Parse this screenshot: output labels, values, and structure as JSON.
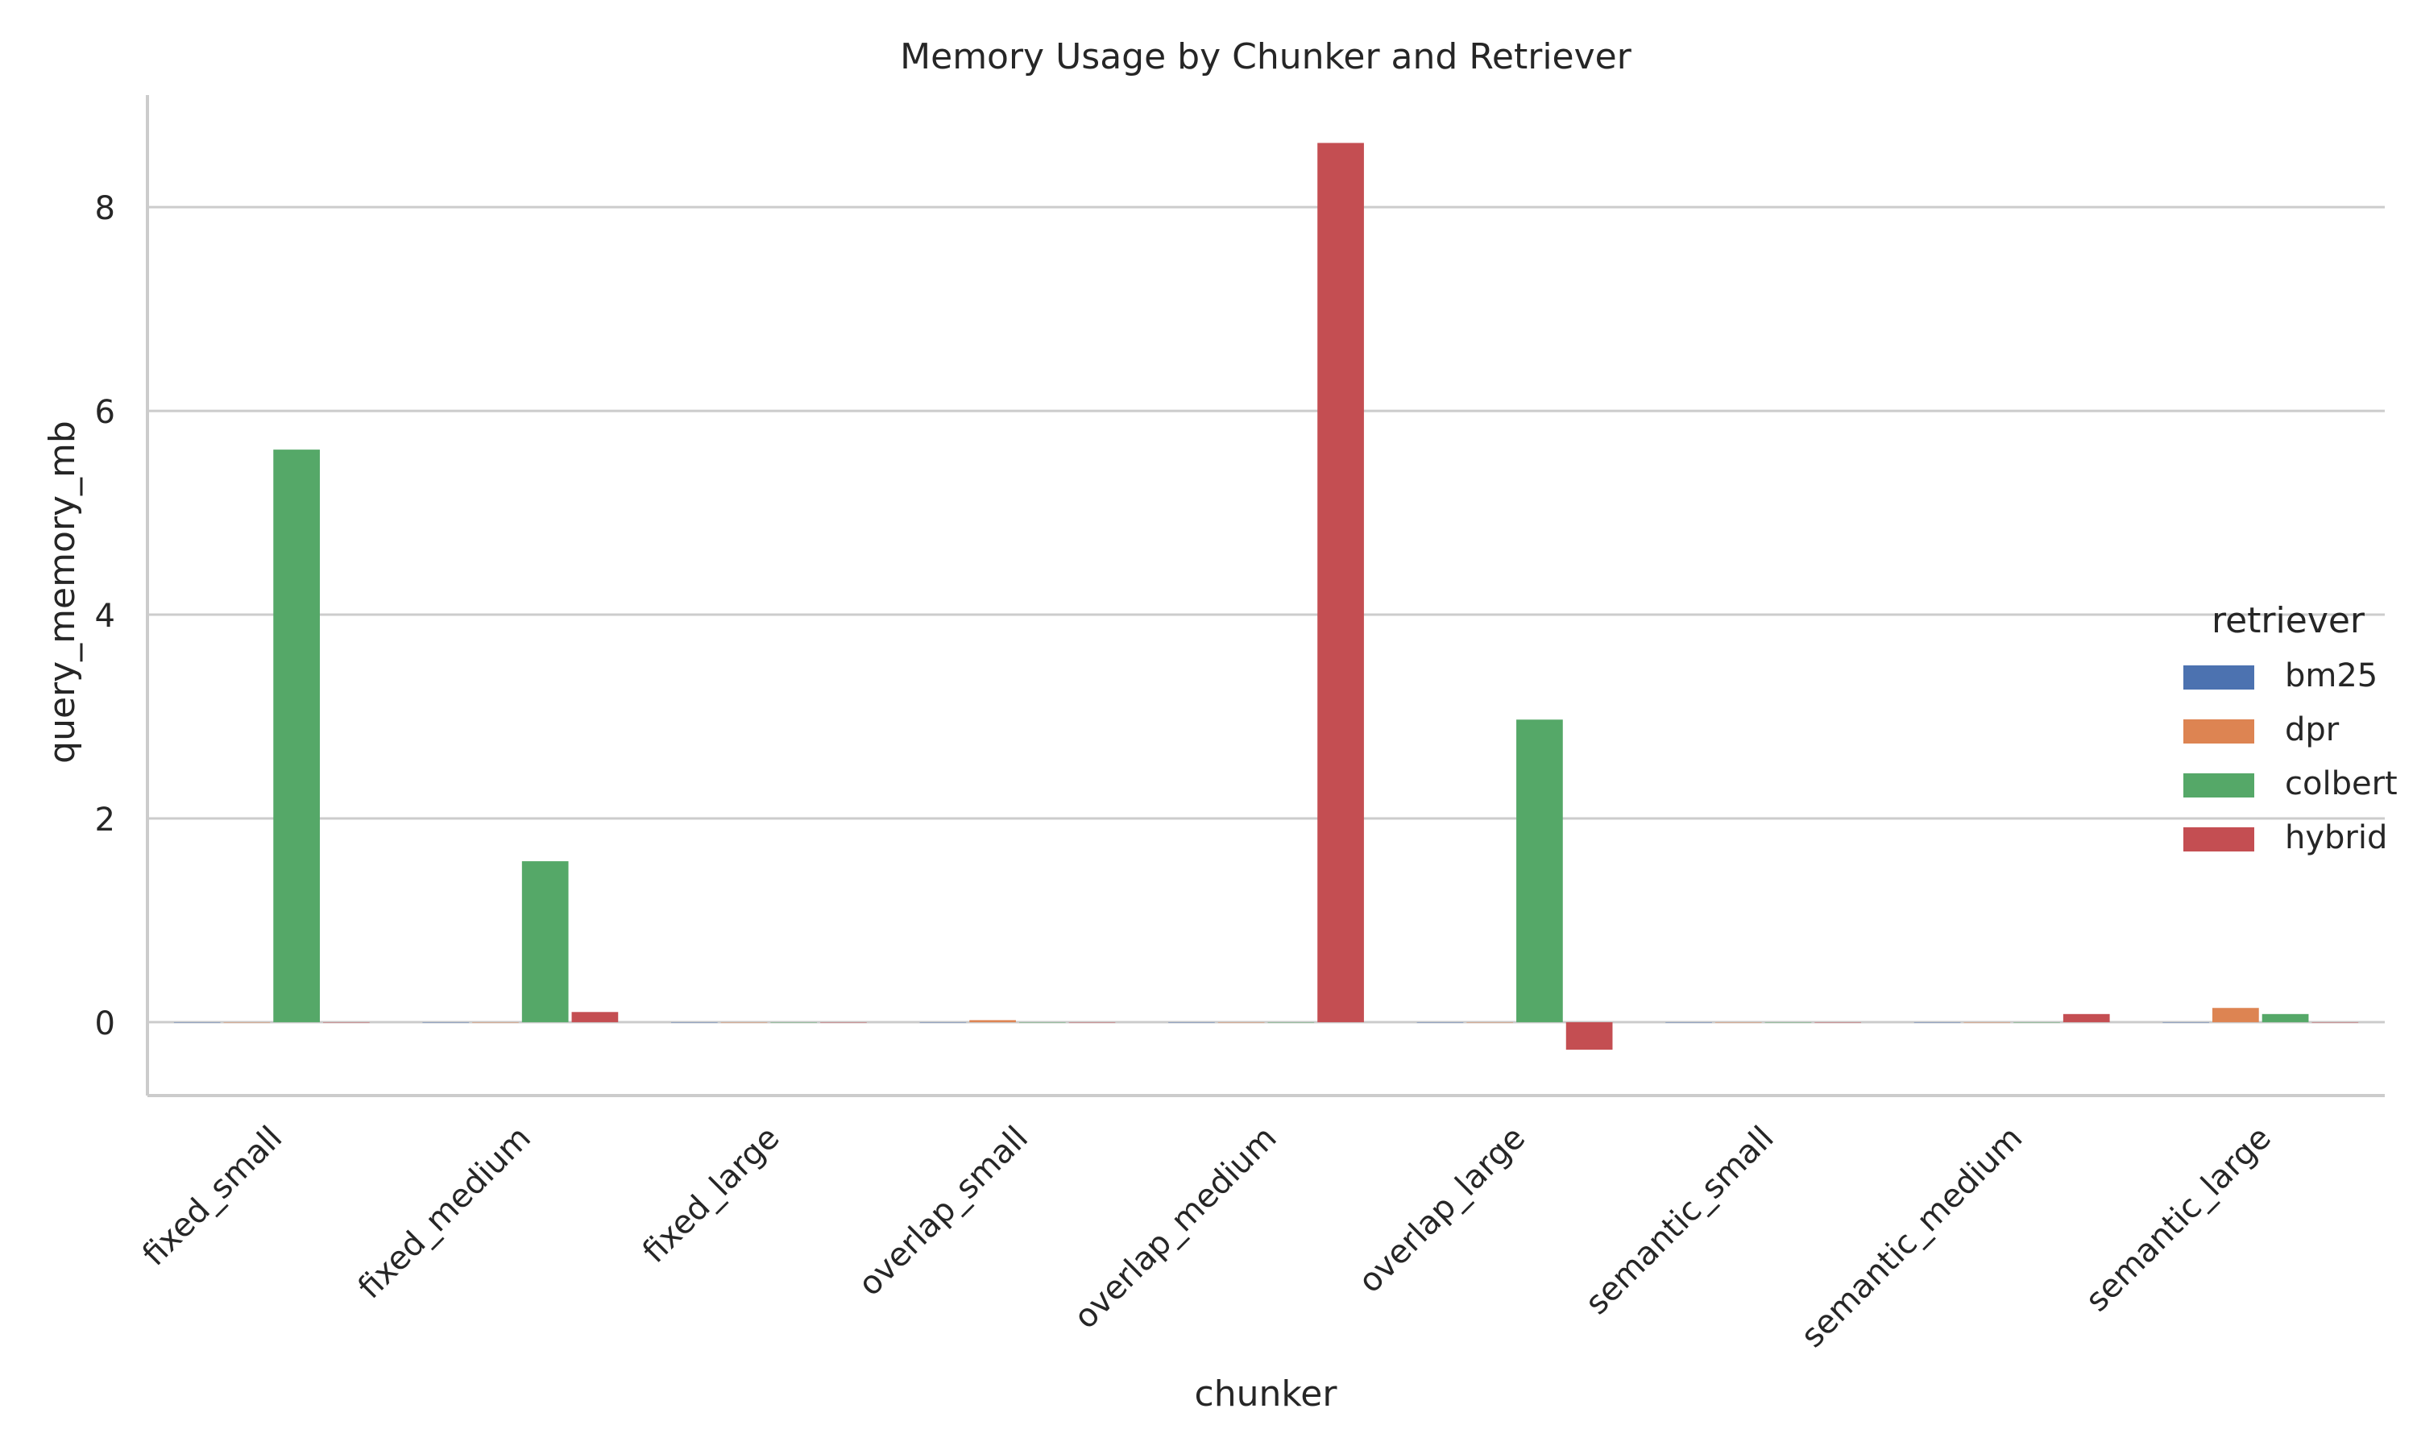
{
  "chart_data": {
    "type": "bar",
    "title": "Memory Usage by Chunker and Retriever",
    "xlabel": "chunker",
    "ylabel": "query_memory_mb",
    "categories": [
      "fixed_small",
      "fixed_medium",
      "fixed_large",
      "overlap_small",
      "overlap_medium",
      "overlap_large",
      "semantic_small",
      "semantic_medium",
      "semantic_large"
    ],
    "yticks": [
      "0",
      "2",
      "4",
      "6",
      "8"
    ],
    "ylim": [
      -0.72,
      9.1
    ],
    "grid": true,
    "legend": {
      "title": "retriever",
      "placement": "center-right"
    },
    "series": [
      {
        "name": "bm25",
        "color": "#4c72b0",
        "values": [
          0.0,
          0.0,
          0.0,
          0.0,
          0.0,
          0.0,
          0.0,
          0.0,
          0.0
        ]
      },
      {
        "name": "dpr",
        "color": "#dd8452",
        "values": [
          0.0,
          0.0,
          0.0,
          0.02,
          0.0,
          0.0,
          0.0,
          0.0,
          0.14
        ]
      },
      {
        "name": "colbert",
        "color": "#55a868",
        "values": [
          5.62,
          1.58,
          0.0,
          0.0,
          0.0,
          2.97,
          0.0,
          0.0,
          0.08
        ]
      },
      {
        "name": "hybrid",
        "color": "#c44e52",
        "values": [
          0.0,
          0.1,
          0.0,
          0.0,
          8.63,
          -0.27,
          0.0,
          0.08,
          0.0
        ]
      }
    ]
  }
}
